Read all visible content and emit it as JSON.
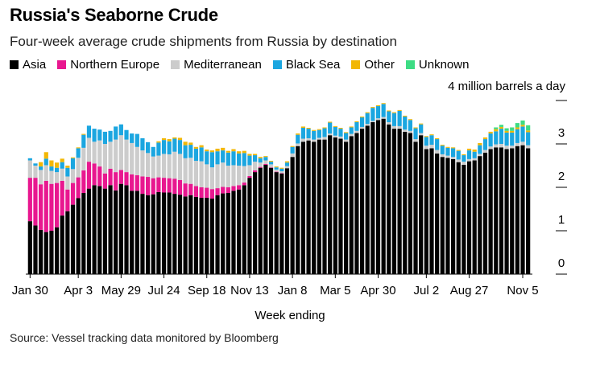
{
  "title": "Russia's Seaborne Crude",
  "subtitle": "Four-week average crude shipments from Russia by destination",
  "unit_label": "4 million barrels a day",
  "source": "Source: Vessel tracking data monitored by Bloomberg",
  "chart_data": {
    "type": "bar",
    "stacked": true,
    "xlabel": "Week ending",
    "ylabel": "",
    "ylim": [
      0,
      4
    ],
    "y_ticks": [
      "0",
      "1",
      "2",
      "3",
      "4"
    ],
    "x_tick_labels": [
      {
        "index": 0,
        "label": "Jan 30"
      },
      {
        "index": 9,
        "label": "Apr 3"
      },
      {
        "index": 17,
        "label": "May 29"
      },
      {
        "index": 25,
        "label": "Jul 24"
      },
      {
        "index": 33,
        "label": "Sep 18"
      },
      {
        "index": 41,
        "label": "Nov 13"
      },
      {
        "index": 49,
        "label": "Jan 8"
      },
      {
        "index": 57,
        "label": "Mar 5"
      },
      {
        "index": 65,
        "label": "Apr 30"
      },
      {
        "index": 74,
        "label": "Jul 2"
      },
      {
        "index": 82,
        "label": "Aug 27"
      },
      {
        "index": 92,
        "label": "Nov 5"
      }
    ],
    "legend_position": "top-left",
    "series": [
      {
        "name": "Asia",
        "color": "#000000",
        "values": [
          1.22,
          1.12,
          1.02,
          0.97,
          1.0,
          1.08,
          1.35,
          1.45,
          1.6,
          1.75,
          1.87,
          1.97,
          2.05,
          2.03,
          1.97,
          2.05,
          1.93,
          2.08,
          2.05,
          1.92,
          1.92,
          1.85,
          1.82,
          1.84,
          1.89,
          1.88,
          1.88,
          1.85,
          1.83,
          1.79,
          1.82,
          1.78,
          1.76,
          1.76,
          1.74,
          1.82,
          1.86,
          1.87,
          1.92,
          1.95,
          2.05,
          2.22,
          2.35,
          2.45,
          2.52,
          2.45,
          2.35,
          2.32,
          2.44,
          2.7,
          2.95,
          3.05,
          3.08,
          3.05,
          3.1,
          3.1,
          3.2,
          3.15,
          3.12,
          3.05,
          3.18,
          3.25,
          3.35,
          3.42,
          3.5,
          3.55,
          3.58,
          3.45,
          3.35,
          3.35,
          3.28,
          3.25,
          3.05,
          3.2,
          2.88,
          2.9,
          2.78,
          2.7,
          2.68,
          2.65,
          2.58,
          2.52,
          2.6,
          2.62,
          2.72,
          2.8,
          2.88,
          2.92,
          2.92,
          2.88,
          2.9,
          2.95,
          2.97,
          2.9
        ]
      },
      {
        "name": "Northern Europe",
        "color": "#e8178f",
        "values": [
          1.0,
          1.1,
          1.05,
          1.18,
          1.08,
          1.02,
          0.8,
          0.5,
          0.5,
          0.48,
          0.52,
          0.62,
          0.5,
          0.45,
          0.35,
          0.38,
          0.42,
          0.32,
          0.3,
          0.38,
          0.36,
          0.4,
          0.42,
          0.37,
          0.34,
          0.34,
          0.33,
          0.35,
          0.34,
          0.3,
          0.26,
          0.25,
          0.24,
          0.23,
          0.22,
          0.16,
          0.15,
          0.13,
          0.11,
          0.1,
          0.06,
          0.04,
          0.04,
          0.02,
          0.02,
          0.01,
          0.01,
          0.01,
          0.0,
          0.0,
          0.0,
          0.0,
          0.0,
          0.0,
          0.0,
          0.0,
          0.0,
          0.0,
          0.0,
          0.0,
          0.0,
          0.0,
          0.0,
          0.0,
          0.0,
          0.0,
          0.0,
          0.0,
          0.0,
          0.0,
          0.0,
          0.0,
          0.0,
          0.0,
          0.0,
          0.0,
          0.0,
          0.0,
          0.0,
          0.0,
          0.0,
          0.0,
          0.0,
          0.0,
          0.0,
          0.0,
          0.0,
          0.0,
          0.0,
          0.0,
          0.0,
          0.0,
          0.0,
          0.0
        ]
      },
      {
        "name": "Mediterranean",
        "color": "#cccccc",
        "values": [
          0.4,
          0.28,
          0.33,
          0.36,
          0.3,
          0.25,
          0.28,
          0.3,
          0.32,
          0.45,
          0.52,
          0.55,
          0.5,
          0.6,
          0.68,
          0.62,
          0.75,
          0.8,
          0.75,
          0.72,
          0.65,
          0.6,
          0.55,
          0.5,
          0.5,
          0.55,
          0.55,
          0.62,
          0.6,
          0.58,
          0.6,
          0.58,
          0.6,
          0.54,
          0.5,
          0.55,
          0.56,
          0.5,
          0.48,
          0.45,
          0.38,
          0.25,
          0.2,
          0.1,
          0.08,
          0.07,
          0.05,
          0.04,
          0.05,
          0.08,
          0.06,
          0.07,
          0.05,
          0.05,
          0.04,
          0.06,
          0.04,
          0.04,
          0.05,
          0.05,
          0.05,
          0.05,
          0.04,
          0.04,
          0.03,
          0.04,
          0.04,
          0.05,
          0.06,
          0.06,
          0.05,
          0.05,
          0.06,
          0.05,
          0.08,
          0.08,
          0.08,
          0.06,
          0.05,
          0.05,
          0.06,
          0.07,
          0.05,
          0.05,
          0.05,
          0.06,
          0.06,
          0.07,
          0.08,
          0.08,
          0.06,
          0.07,
          0.08,
          0.07
        ]
      },
      {
        "name": "Black Sea",
        "color": "#1ba6e0",
        "values": [
          0.05,
          0.05,
          0.08,
          0.15,
          0.1,
          0.1,
          0.15,
          0.2,
          0.25,
          0.22,
          0.3,
          0.28,
          0.3,
          0.25,
          0.28,
          0.25,
          0.3,
          0.25,
          0.22,
          0.22,
          0.3,
          0.28,
          0.25,
          0.22,
          0.3,
          0.32,
          0.3,
          0.3,
          0.32,
          0.3,
          0.3,
          0.28,
          0.32,
          0.3,
          0.35,
          0.3,
          0.28,
          0.3,
          0.32,
          0.28,
          0.3,
          0.22,
          0.15,
          0.1,
          0.08,
          0.06,
          0.05,
          0.06,
          0.08,
          0.15,
          0.2,
          0.25,
          0.22,
          0.2,
          0.18,
          0.2,
          0.25,
          0.2,
          0.18,
          0.15,
          0.15,
          0.2,
          0.22,
          0.25,
          0.3,
          0.28,
          0.3,
          0.25,
          0.3,
          0.35,
          0.3,
          0.25,
          0.25,
          0.2,
          0.2,
          0.22,
          0.25,
          0.2,
          0.18,
          0.2,
          0.2,
          0.15,
          0.2,
          0.15,
          0.2,
          0.25,
          0.3,
          0.3,
          0.35,
          0.3,
          0.3,
          0.32,
          0.35,
          0.3
        ]
      },
      {
        "name": "Other",
        "color": "#f2b705",
        "values": [
          0.0,
          0.0,
          0.1,
          0.15,
          0.14,
          0.12,
          0.08,
          0.05,
          0.02,
          0.02,
          0.02,
          0.0,
          0.0,
          0.0,
          0.0,
          0.0,
          0.0,
          0.0,
          0.0,
          0.0,
          0.0,
          0.0,
          0.0,
          0.0,
          0.03,
          0.04,
          0.05,
          0.03,
          0.05,
          0.08,
          0.05,
          0.04,
          0.05,
          0.04,
          0.04,
          0.06,
          0.06,
          0.04,
          0.05,
          0.05,
          0.05,
          0.04,
          0.03,
          0.03,
          0.02,
          0.02,
          0.02,
          0.02,
          0.03,
          0.02,
          0.03,
          0.03,
          0.02,
          0.02,
          0.02,
          0.02,
          0.02,
          0.02,
          0.02,
          0.02,
          0.02,
          0.02,
          0.02,
          0.02,
          0.02,
          0.02,
          0.02,
          0.02,
          0.02,
          0.02,
          0.02,
          0.02,
          0.02,
          0.02,
          0.02,
          0.02,
          0.02,
          0.02,
          0.02,
          0.02,
          0.02,
          0.02,
          0.04,
          0.05,
          0.05,
          0.04,
          0.04,
          0.05,
          0.04,
          0.04,
          0.04,
          0.04,
          0.04,
          0.04
        ]
      },
      {
        "name": "Unknown",
        "color": "#3ddc84",
        "values": [
          0.0,
          0.0,
          0.0,
          0.0,
          0.0,
          0.0,
          0.0,
          0.0,
          0.0,
          0.0,
          0.0,
          0.0,
          0.0,
          0.0,
          0.0,
          0.0,
          0.0,
          0.0,
          0.0,
          0.0,
          0.0,
          0.0,
          0.0,
          0.0,
          0.0,
          0.0,
          0.0,
          0.0,
          0.0,
          0.0,
          0.0,
          0.0,
          0.0,
          0.0,
          0.0,
          0.0,
          0.0,
          0.0,
          0.0,
          0.0,
          0.0,
          0.0,
          0.0,
          0.0,
          0.0,
          0.0,
          0.0,
          0.0,
          0.0,
          0.0,
          0.0,
          0.0,
          0.0,
          0.0,
          0.0,
          0.0,
          0.0,
          0.0,
          0.0,
          0.0,
          0.0,
          0.0,
          0.0,
          0.0,
          0.0,
          0.0,
          0.0,
          0.0,
          0.0,
          0.0,
          0.0,
          0.0,
          0.0,
          0.0,
          0.0,
          0.0,
          0.0,
          0.0,
          0.0,
          0.0,
          0.0,
          0.0,
          0.0,
          0.0,
          0.0,
          0.0,
          0.0,
          0.04,
          0.05,
          0.06,
          0.08,
          0.1,
          0.1,
          0.12
        ]
      }
    ]
  }
}
